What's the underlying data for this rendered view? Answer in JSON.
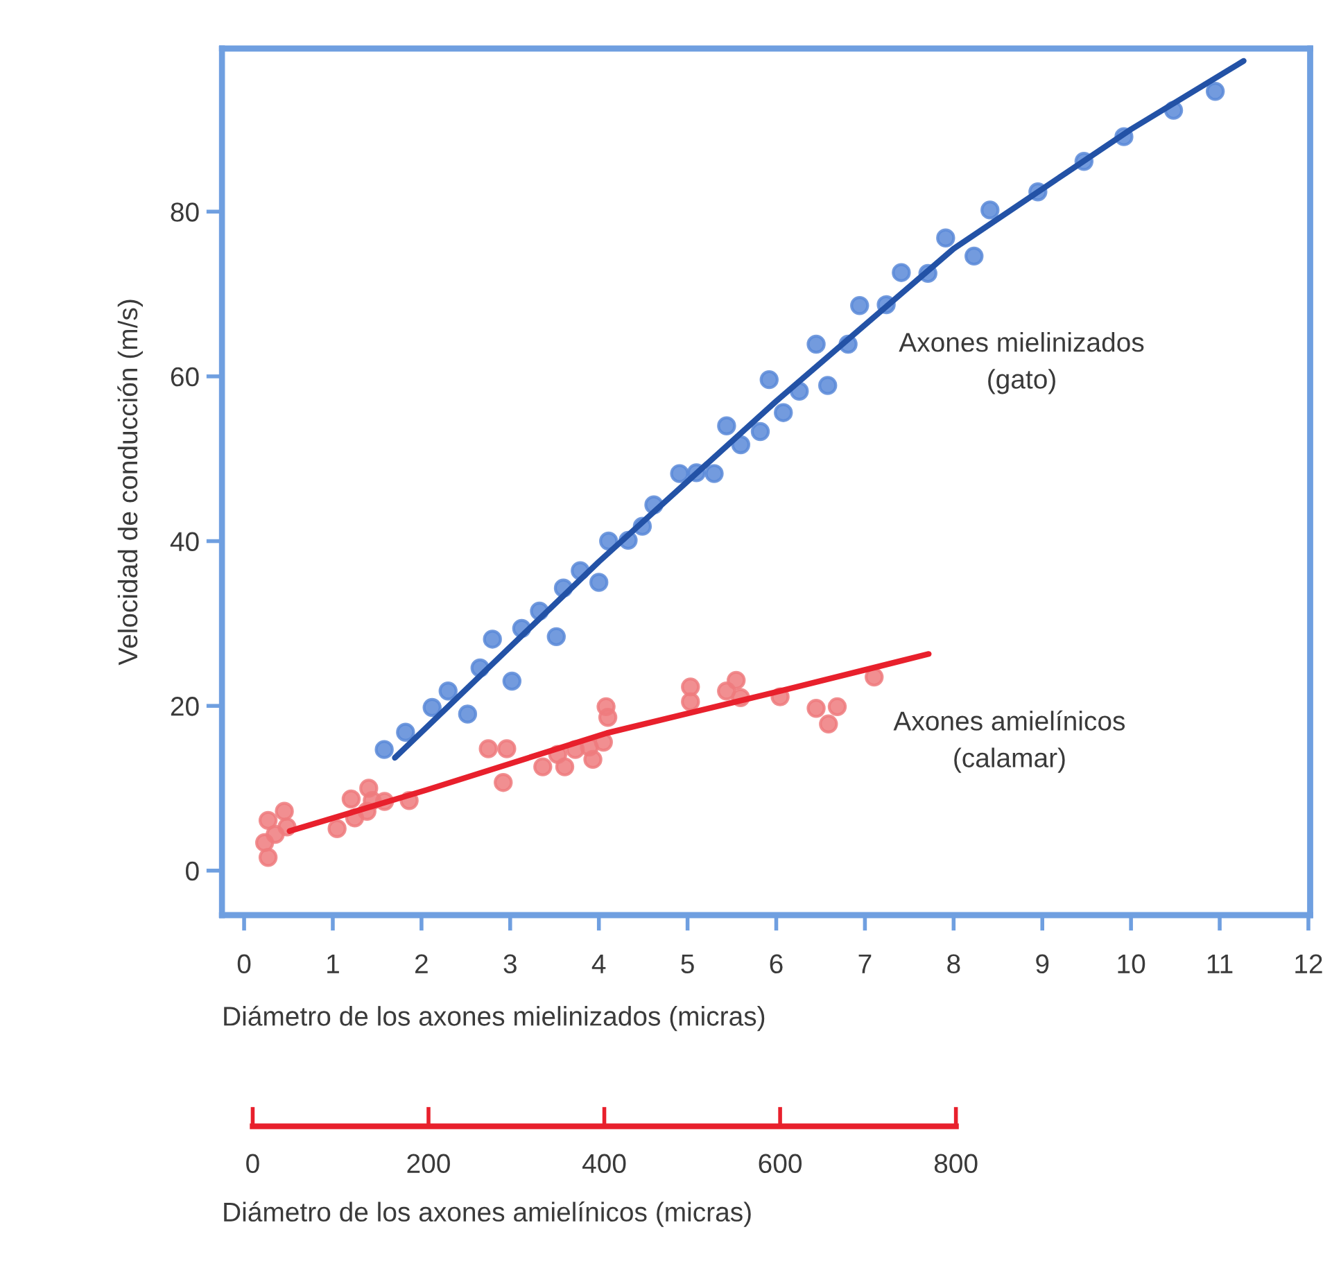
{
  "chart_data": {
    "type": "scatter",
    "xlabel": "Diámetro de los axones mielinizados (micras)",
    "x2label": "Diámetro de los axones amielínicos (micras)",
    "ylabel": "Velocidad de conducción (m/s)",
    "xlim": [
      -0.25,
      12.02
    ],
    "xticks": [
      0,
      1,
      2,
      3,
      4,
      5,
      6,
      7,
      8,
      9,
      10,
      11,
      12
    ],
    "x2lim": [
      -35,
      1203
    ],
    "x2ticks": [
      0,
      200,
      400,
      600,
      800
    ],
    "ylim": [
      -5.4,
      99.8
    ],
    "yticks": [
      0,
      20,
      40,
      60,
      80
    ],
    "grid": false,
    "legend": false,
    "series": [
      {
        "name": "Axones mielinizados\n(gato)",
        "marker": "circle",
        "color": "#5b8ad8",
        "x": [
          1.58,
          1.82,
          2.12,
          2.3,
          2.52,
          2.66,
          2.8,
          3.02,
          3.13,
          3.33,
          3.52,
          3.6,
          3.79,
          4.0,
          4.11,
          4.33,
          4.49,
          4.62,
          4.91,
          5.1,
          5.3,
          5.44,
          5.6,
          5.82,
          5.92,
          6.08,
          6.26,
          6.45,
          6.58,
          6.81,
          6.94,
          7.24,
          7.41,
          7.71,
          7.91,
          8.23,
          8.41,
          8.95,
          9.47,
          9.92,
          10.48,
          10.95
        ],
        "values": [
          14.7,
          16.8,
          19.8,
          21.8,
          19.0,
          24.6,
          28.1,
          23.0,
          29.4,
          31.5,
          28.4,
          34.3,
          36.4,
          35.0,
          40.0,
          40.1,
          41.8,
          44.4,
          48.2,
          48.3,
          48.2,
          54.0,
          51.7,
          53.3,
          59.6,
          55.6,
          58.2,
          63.9,
          58.9,
          63.9,
          68.6,
          68.7,
          72.6,
          72.5,
          76.8,
          74.6,
          80.2,
          82.4,
          86.1,
          89.1,
          92.3,
          94.6
        ]
      },
      {
        "type": "line",
        "marker": "none",
        "color": "#2352a6",
        "x": [
          1.7,
          4,
          6,
          8,
          10,
          11.27
        ],
        "values": [
          13.7,
          37.5,
          57,
          75.5,
          90,
          98.3
        ]
      },
      {
        "name": "Axones amielínicos\n(calamar)",
        "marker": "circle",
        "color": "#ee7b7e",
        "axis": "x2",
        "x": [
          17.5,
          13.6,
          25.6,
          17.5,
          36,
          39,
          96,
          112,
          116,
          132,
          130,
          136,
          150,
          178,
          268,
          289,
          285,
          330,
          347,
          355,
          367,
          383,
          387,
          399,
          402,
          404,
          498,
          498,
          539,
          550,
          555,
          600,
          641,
          665,
          655,
          707
        ],
        "values": [
          1.6,
          3.4,
          4.4,
          6.1,
          7.2,
          5.3,
          5.1,
          8.7,
          6.4,
          10.0,
          7.2,
          8.5,
          8.4,
          8.5,
          14.8,
          14.8,
          10.7,
          12.6,
          14.1,
          12.6,
          14.7,
          15.0,
          13.5,
          15.6,
          19.9,
          18.6,
          22.3,
          20.5,
          21.8,
          23.1,
          21.0,
          21.1,
          19.7,
          19.9,
          17.8,
          23.5
        ]
      },
      {
        "type": "line",
        "marker": "none",
        "color": "#e8202c",
        "axis": "x2",
        "x": [
          42,
          198,
          403,
          600,
          769
        ],
        "values": [
          4.8,
          9.8,
          16.7,
          21.8,
          26.3
        ]
      }
    ]
  }
}
